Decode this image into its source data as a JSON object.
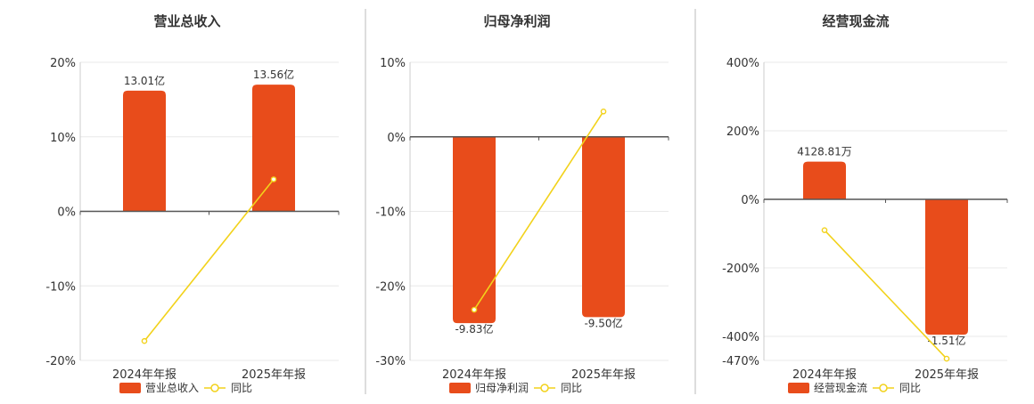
{
  "colors": {
    "bar": "#e84c1b",
    "line": "#f2d21b",
    "grid": "#e8e8e8",
    "axis": "#555555",
    "divider": "#bbbbbb",
    "text": "#333333"
  },
  "chart_data": [
    {
      "type": "bar",
      "title": "营业总收入",
      "categories": [
        "2024年年报",
        "2025年年报"
      ],
      "series": [
        {
          "name": "营业总收入",
          "kind": "bar",
          "values": [
            13.01,
            13.56
          ],
          "labels": [
            "13.01亿",
            "13.56亿"
          ]
        },
        {
          "name": "同比",
          "kind": "line",
          "values": [
            -17.4,
            4.3
          ]
        }
      ],
      "ylim": [
        -20,
        20
      ],
      "yticks": [
        "20%",
        "10%",
        "0%",
        "-10%",
        "-20%"
      ],
      "ytick_values": [
        20,
        10,
        0,
        -10,
        -20
      ],
      "bar_pct": [
        16.2,
        17.0
      ]
    },
    {
      "type": "bar",
      "title": "归母净利润",
      "categories": [
        "2024年年报",
        "2025年年报"
      ],
      "series": [
        {
          "name": "归母净利润",
          "kind": "bar",
          "values": [
            -9.83,
            -9.5
          ],
          "labels": [
            "-9.83亿",
            "-9.50亿"
          ]
        },
        {
          "name": "同比",
          "kind": "line",
          "values": [
            -23.2,
            3.4
          ]
        }
      ],
      "ylim": [
        -30,
        10
      ],
      "yticks": [
        "10%",
        "0%",
        "-10%",
        "-20%",
        "-30%"
      ],
      "ytick_values": [
        10,
        0,
        -10,
        -20,
        -30
      ],
      "bar_pct": [
        -25.0,
        -24.2
      ]
    },
    {
      "type": "bar",
      "title": "经营现金流",
      "categories": [
        "2024年年报",
        "2025年年报"
      ],
      "series": [
        {
          "name": "经营现金流",
          "kind": "bar",
          "values": [
            0.4128,
            -1.51
          ],
          "labels": [
            "4128.81万",
            "-1.51亿"
          ]
        },
        {
          "name": "同比",
          "kind": "line",
          "values": [
            -90,
            -465
          ]
        }
      ],
      "ylim": [
        -470,
        400
      ],
      "yticks": [
        "400%",
        "200%",
        "0%",
        "-200%",
        "-400%",
        "-470%"
      ],
      "ytick_values": [
        400,
        200,
        0,
        -200,
        -400,
        -470
      ],
      "bar_pct": [
        110,
        -395
      ]
    }
  ]
}
